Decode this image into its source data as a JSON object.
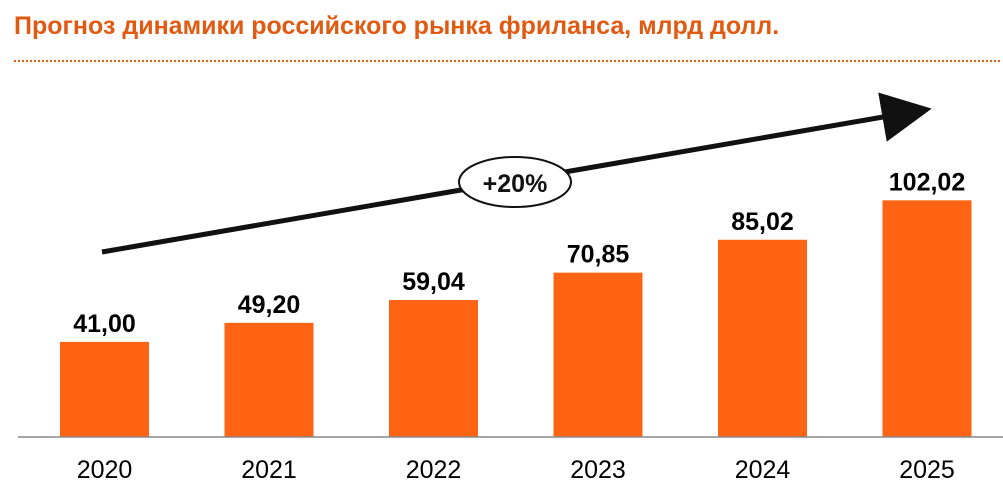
{
  "title": "Прогноз динамики российского рынка фриланса, млрд долл.",
  "colors": {
    "bar": "#ff6414",
    "title": "#e05a12",
    "arrow": "#111111"
  },
  "annotation": {
    "label": "+20%",
    "icon": "trend-arrow-icon"
  },
  "chart_data": {
    "type": "bar",
    "title": "Прогноз динамики российского рынка фриланса, млрд долл.",
    "categories": [
      "2020",
      "2021",
      "2022",
      "2023",
      "2024",
      "2025"
    ],
    "values": [
      41.0,
      49.2,
      59.04,
      70.85,
      85.02,
      102.02
    ],
    "value_labels": [
      "41,00",
      "49,20",
      "59,04",
      "70,85",
      "85,02",
      "102,02"
    ],
    "xlabel": "",
    "ylabel": "",
    "ylim": [
      0,
      125
    ],
    "grid": false,
    "legend": "none"
  }
}
